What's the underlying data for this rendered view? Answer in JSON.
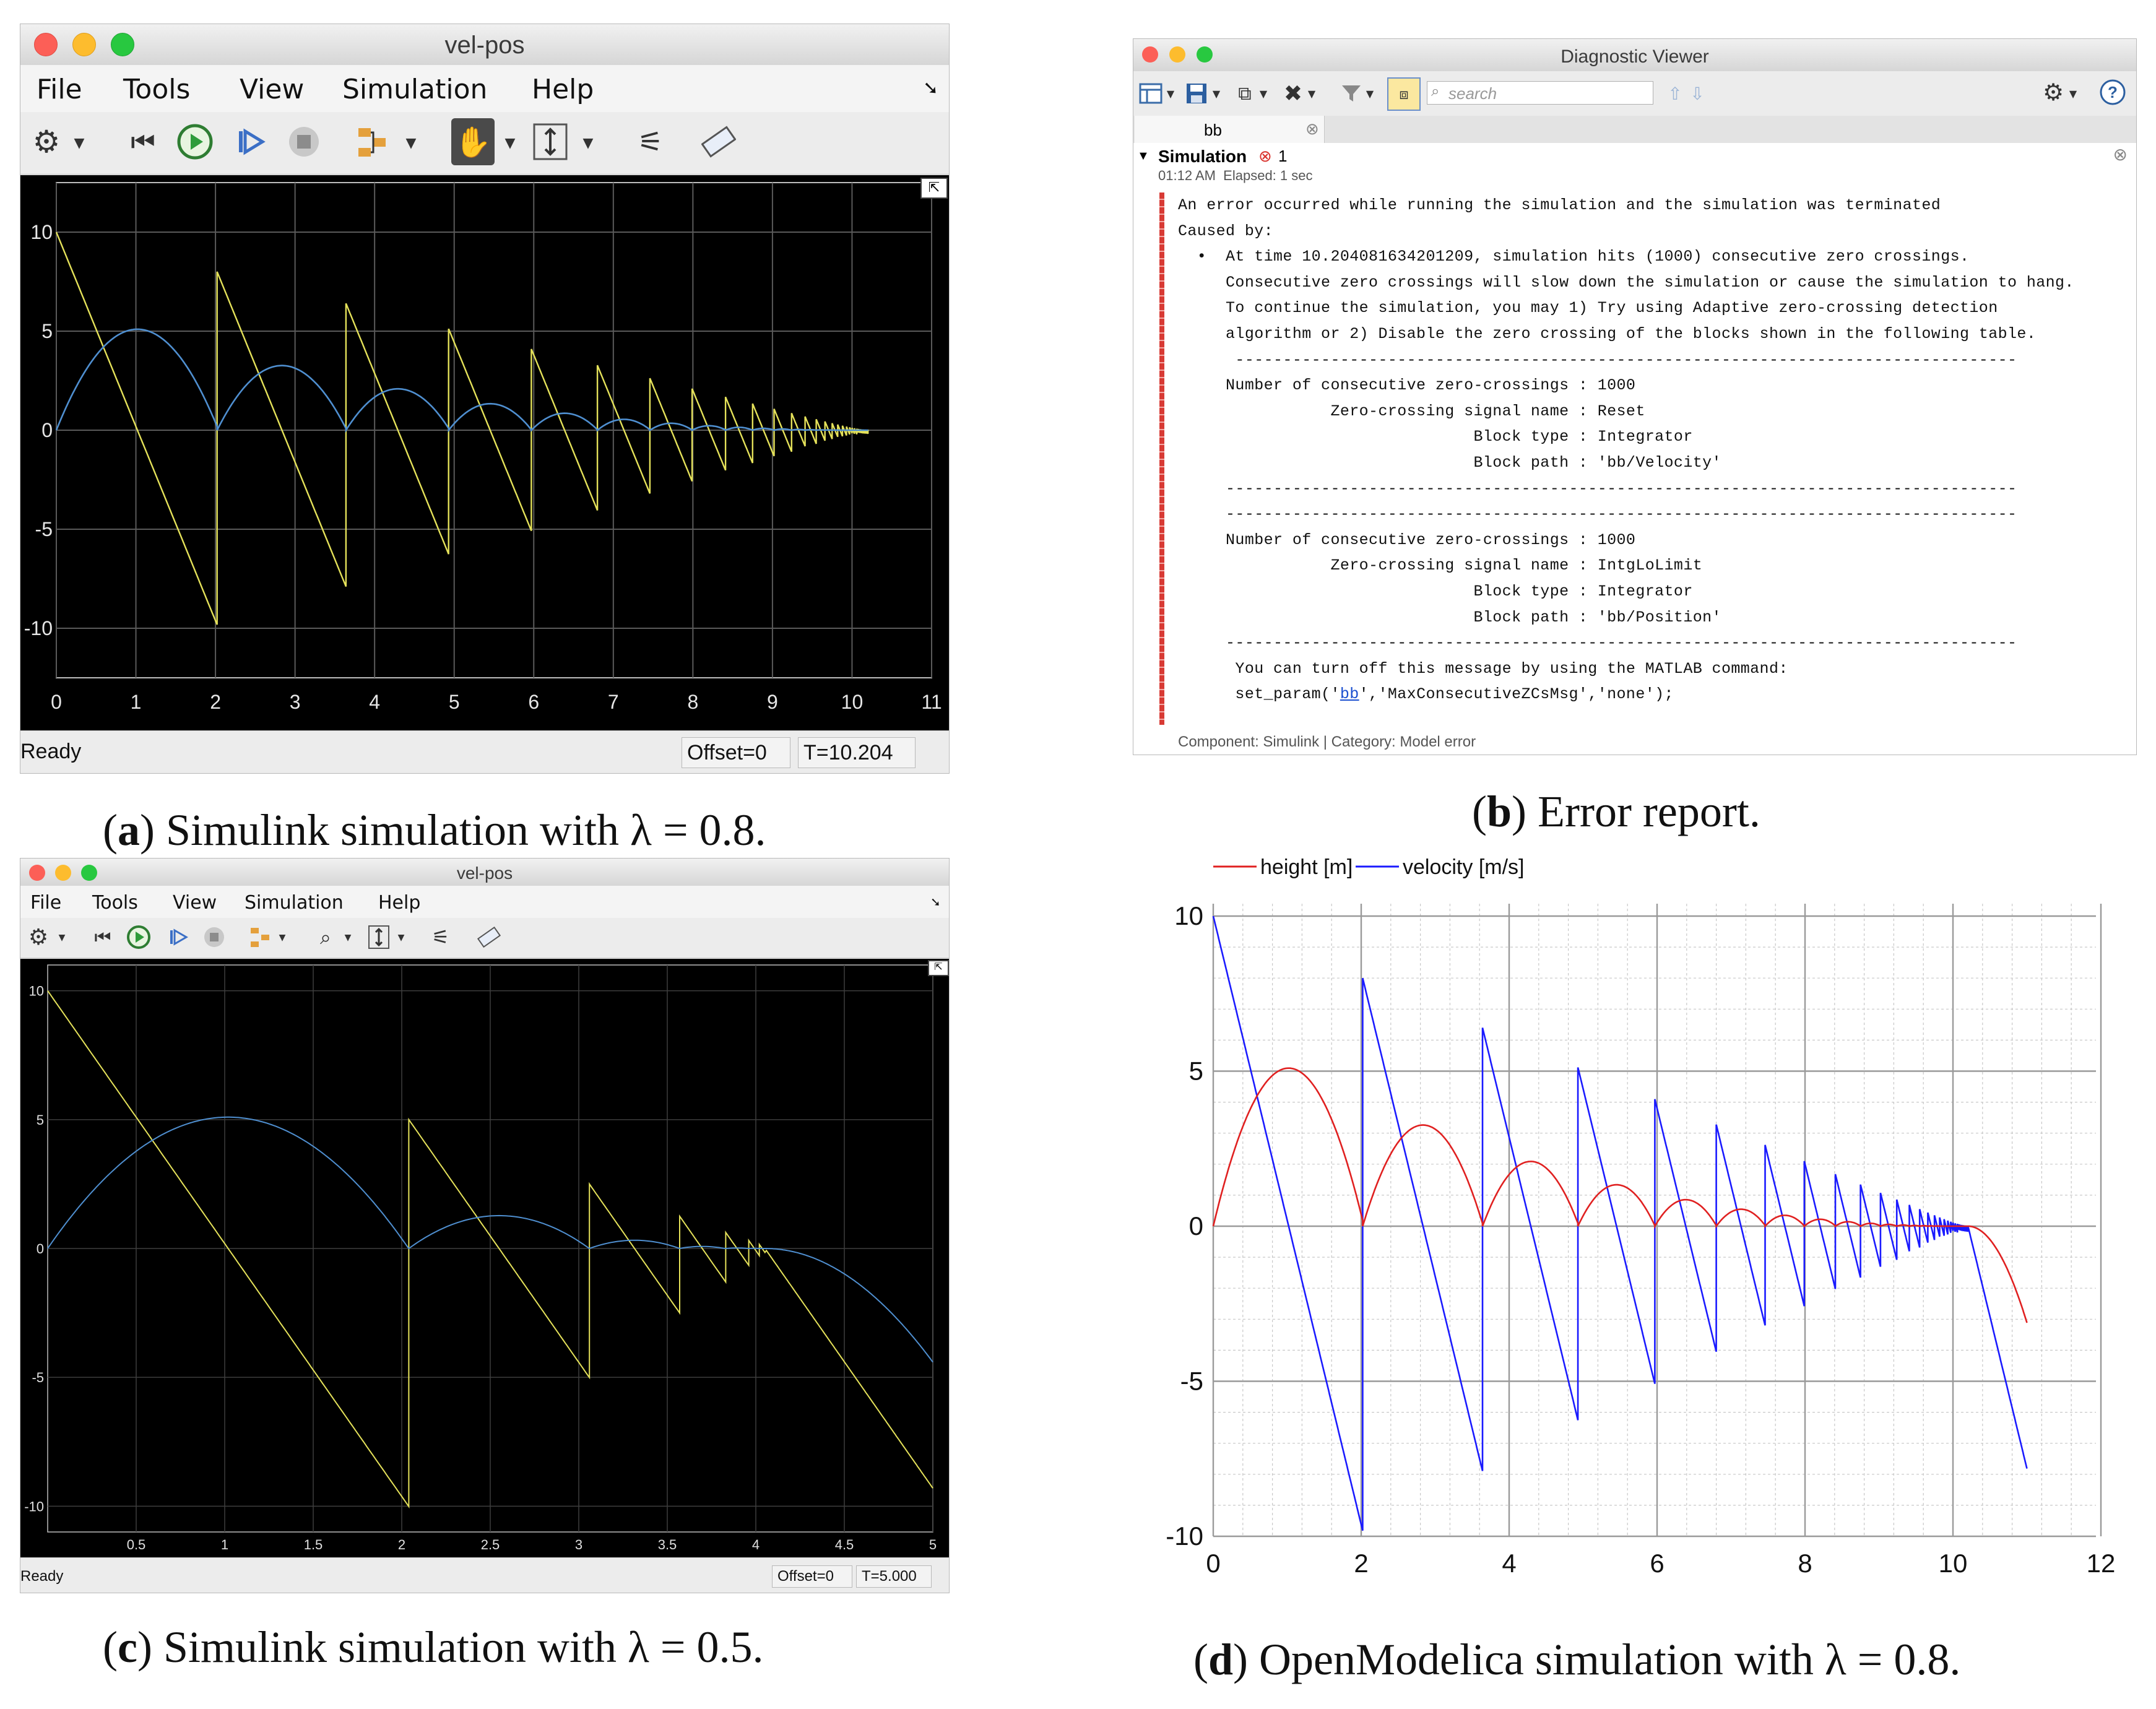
{
  "captions": {
    "a": {
      "label": "a",
      "text": " Simulink simulation with λ = 0.8."
    },
    "b": {
      "label": "b",
      "text": " Error report."
    },
    "c": {
      "label": "c",
      "text": " Simulink simulation with λ = 0.5."
    },
    "d": {
      "label": "d",
      "text": " OpenModelica simulation with λ = 0.8."
    }
  },
  "scope_a": {
    "title": "vel-pos",
    "menu": [
      "File",
      "Tools",
      "View",
      "Simulation",
      "Help"
    ],
    "status": "Ready",
    "offset": "Offset=0",
    "time": "T=10.204",
    "x_ticks": [
      "0",
      "1",
      "2",
      "3",
      "4",
      "5",
      "6",
      "7",
      "8",
      "9",
      "10",
      "11"
    ],
    "y_ticks": [
      "10",
      "5",
      "0",
      "-5",
      "-10"
    ],
    "colors": {
      "position": "#4f8fd0",
      "velocity": "#e5e25a",
      "grid": "#5a5a5a"
    }
  },
  "scope_c": {
    "title": "vel-pos",
    "menu": [
      "File",
      "Tools",
      "View",
      "Simulation",
      "Help"
    ],
    "status": "Ready",
    "offset": "Offset=0",
    "time": "T=5.000",
    "x_ticks": [
      "0.5",
      "1",
      "1.5",
      "2",
      "2.5",
      "3",
      "3.5",
      "4",
      "4.5",
      "5"
    ],
    "y_ticks": [
      "10",
      "5",
      "0",
      "-5",
      "-10"
    ]
  },
  "diagnostic": {
    "title": "Diagnostic Viewer",
    "search_placeholder": "search",
    "tab": "bb",
    "section": "Simulation",
    "error_count": "1",
    "time_line": "01:12 AM  Elapsed: 1 sec",
    "lines": [
      "An error occurred while running the simulation and the simulation was terminated",
      "Caused by:",
      "  •  At time 10.204081634201209, simulation hits (1000) consecutive zero crossings.",
      "     Consecutive zero crossings will slow down the simulation or cause the simulation to hang.",
      "     To continue the simulation, you may 1) Try using Adaptive zero-crossing detection",
      "     algorithm or 2) Disable the zero crossing of the blocks shown in the following table.",
      "      ----------------------------------------------------------------------------------",
      "     Number of consecutive zero-crossings : 1000",
      "                Zero-crossing signal name : Reset",
      "                               Block type : Integrator",
      "                               Block path : 'bb/Velocity'",
      "     -----------------------------------------------------------------------------------",
      "     -----------------------------------------------------------------------------------",
      "     Number of consecutive zero-crossings : 1000",
      "                Zero-crossing signal name : IntgLoLimit",
      "                               Block type : Integrator",
      "                               Block path : 'bb/Position'",
      "     -----------------------------------------------------------------------------------",
      "      You can turn off this message by using the MATLAB command:",
      "      set_param('bb','MaxConsecutiveZCsMsg','none');"
    ],
    "footer": "Component: Simulink | Category: Model error"
  },
  "chart_data": [
    {
      "type": "line",
      "panel": "a",
      "xlim": [
        0,
        11
      ],
      "ylim": [
        -12.5,
        12.5
      ],
      "x_ticks": [
        0,
        1,
        2,
        3,
        4,
        5,
        6,
        7,
        8,
        9,
        10,
        11
      ],
      "y_ticks": [
        -10,
        -5,
        0,
        5,
        10
      ],
      "grid": true,
      "bounce_times": [
        2.02,
        3.64,
        4.93,
        5.97,
        6.8,
        7.46,
        7.99,
        8.41,
        8.75,
        9.02,
        9.24,
        9.41,
        9.55,
        9.66,
        9.75,
        9.82,
        9.88,
        9.93,
        9.97,
        10.0,
        10.03,
        10.06,
        10.08,
        10.1,
        10.12,
        10.14,
        10.16,
        10.18,
        10.2
      ],
      "series": [
        {
          "color": "#e5e25a",
          "description_values": "velocity, starts 10, restitution 0.8"
        },
        {
          "color": "#4f8fd0",
          "description_values": "position, peak 5.1 at t=1"
        }
      ]
    },
    {
      "type": "line",
      "panel": "c",
      "xlim": [
        0,
        5
      ],
      "ylim": [
        -11,
        11
      ],
      "x_ticks": [
        0.5,
        1,
        1.5,
        2,
        2.5,
        3,
        3.5,
        4,
        4.5,
        5
      ],
      "y_ticks": [
        -10,
        -5,
        0,
        5,
        10
      ],
      "grid": true,
      "bounce_times": [
        2.04,
        3.06,
        3.57,
        3.83,
        3.96,
        4.02
      ],
      "series": [
        {
          "color": "#e5e25a",
          "description_values": "velocity, starts 10, restitution 0.5"
        },
        {
          "color": "#4f8fd0",
          "description_values": "position, peak 5.1 at t=1"
        }
      ]
    },
    {
      "type": "line",
      "panel": "d",
      "xlim": [
        0,
        12
      ],
      "ylim": [
        -10,
        10
      ],
      "x_ticks": [
        0,
        2,
        4,
        6,
        8,
        10,
        12
      ],
      "y_ticks": [
        -10,
        -5,
        0,
        5,
        10
      ],
      "grid": true,
      "legend_position": "top-left",
      "bounce_times": [
        2.02,
        3.64,
        4.93,
        5.97,
        6.8,
        7.46,
        7.99,
        8.41,
        8.75,
        9.02,
        9.24,
        9.41,
        9.55,
        9.66,
        9.75,
        9.82,
        9.88,
        9.93,
        9.97,
        10.0,
        10.03,
        10.06,
        10.08,
        10.1,
        10.12,
        10.14,
        10.16,
        10.18,
        10.2
      ],
      "series": [
        {
          "name": "height [m]",
          "color": "#e02020"
        },
        {
          "name": "velocity [m/s]",
          "color": "#1a1aff"
        }
      ],
      "end_values": {
        "t": 11,
        "height": -3.2,
        "velocity": -7.9
      }
    }
  ]
}
